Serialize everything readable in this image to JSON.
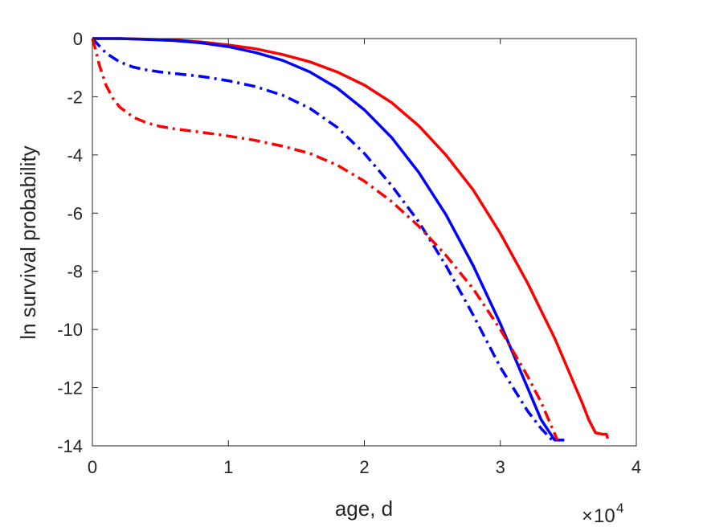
{
  "chart_data": {
    "type": "line",
    "xlabel": "age, d",
    "ylabel": "ln survival probability",
    "x_multiplier": {
      "base": "10",
      "exponent": "4",
      "symbol": "×"
    },
    "xlim": [
      0,
      40000
    ],
    "ylim": [
      -14,
      0
    ],
    "x_ticks": [
      0,
      10000,
      20000,
      30000,
      40000
    ],
    "x_tick_labels": [
      "0",
      "1",
      "2",
      "3",
      "4"
    ],
    "y_ticks": [
      0,
      -2,
      -4,
      -6,
      -8,
      -10,
      -12,
      -14
    ],
    "y_tick_labels": [
      "0",
      "-2",
      "-4",
      "-6",
      "-8",
      "-10",
      "-12",
      "-14"
    ],
    "grid": false,
    "series": [
      {
        "color": "#ff0000",
        "dash": "solid",
        "x": [
          0,
          2000,
          4000,
          6000,
          8000,
          10000,
          12000,
          14000,
          16000,
          18000,
          20000,
          22000,
          24000,
          26000,
          28000,
          30000,
          32000,
          34000,
          35000,
          36000,
          36500,
          37000,
          37500,
          37800,
          37900
        ],
        "y": [
          0,
          0,
          -0.02,
          -0.05,
          -0.12,
          -0.22,
          -0.35,
          -0.55,
          -0.8,
          -1.15,
          -1.6,
          -2.2,
          -3.0,
          -4.0,
          -5.2,
          -6.7,
          -8.4,
          -10.3,
          -11.4,
          -12.5,
          -13.1,
          -13.55,
          -13.6,
          -13.6,
          -13.75
        ]
      },
      {
        "color": "#0000ff",
        "dash": "solid",
        "x": [
          0,
          2000,
          4000,
          6000,
          8000,
          10000,
          12000,
          14000,
          16000,
          18000,
          20000,
          22000,
          24000,
          26000,
          28000,
          30000,
          32000,
          33000,
          34000,
          34200,
          34700
        ],
        "y": [
          0,
          0,
          -0.03,
          -0.07,
          -0.15,
          -0.28,
          -0.48,
          -0.75,
          -1.15,
          -1.7,
          -2.45,
          -3.4,
          -4.6,
          -6.05,
          -7.8,
          -9.8,
          -12.0,
          -13.1,
          -13.8,
          -13.8,
          -13.8
        ]
      },
      {
        "color": "#0000ff",
        "dash": "dashdot",
        "x": [
          0,
          500,
          1000,
          2000,
          3000,
          4000,
          5000,
          6000,
          8000,
          10000,
          12000,
          14000,
          16000,
          18000,
          20000,
          22000,
          24000,
          26000,
          28000,
          30000,
          32000,
          33000,
          33800
        ],
        "y": [
          0,
          -0.25,
          -0.5,
          -0.8,
          -0.98,
          -1.08,
          -1.15,
          -1.2,
          -1.3,
          -1.45,
          -1.65,
          -1.95,
          -2.4,
          -3.05,
          -3.95,
          -5.05,
          -6.3,
          -7.8,
          -9.5,
          -11.3,
          -12.8,
          -13.4,
          -13.8
        ]
      },
      {
        "color": "#ff0000",
        "dash": "dashdot",
        "x": [
          0,
          250,
          500,
          1000,
          1500,
          2000,
          3000,
          4000,
          5000,
          6000,
          8000,
          10000,
          12000,
          14000,
          16000,
          18000,
          20000,
          22000,
          24000,
          26000,
          28000,
          30000,
          32000,
          33000,
          34200
        ],
        "y": [
          0,
          -0.4,
          -0.9,
          -1.6,
          -2.05,
          -2.35,
          -2.7,
          -2.9,
          -3.02,
          -3.1,
          -3.22,
          -3.35,
          -3.5,
          -3.7,
          -3.95,
          -4.35,
          -4.9,
          -5.6,
          -6.45,
          -7.45,
          -8.6,
          -10.0,
          -11.6,
          -12.5,
          -13.8
        ]
      }
    ]
  }
}
